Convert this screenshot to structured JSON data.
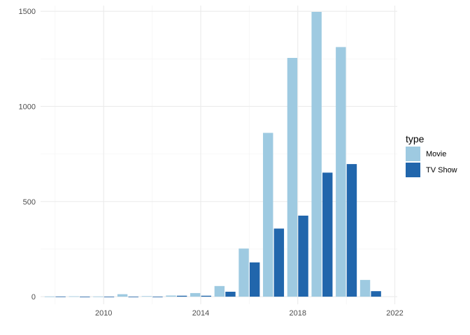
{
  "chart_data": {
    "type": "bar",
    "x": [
      2008,
      2009,
      2010,
      2011,
      2012,
      2013,
      2014,
      2015,
      2016,
      2017,
      2018,
      2019,
      2020,
      2021
    ],
    "series": [
      {
        "name": "Movie",
        "color": "#9ecae1",
        "values": [
          1,
          2,
          1,
          13,
          3,
          6,
          19,
          56,
          253,
          861,
          1255,
          1497,
          1312,
          88
        ]
      },
      {
        "name": "TV Show",
        "color": "#2166ac",
        "values": [
          1,
          0,
          0,
          0,
          0,
          5,
          5,
          26,
          180,
          358,
          426,
          652,
          697,
          29
        ]
      }
    ],
    "xlabel": "",
    "ylabel": "",
    "xlim": [
      2007.4,
      2022.1
    ],
    "ylim": [
      -40,
      1530
    ],
    "x_ticks": [
      2010,
      2014,
      2018,
      2022
    ],
    "y_ticks": [
      0,
      500,
      1000,
      1500
    ],
    "grid": true,
    "legend": {
      "title": "type",
      "position": "right"
    }
  }
}
